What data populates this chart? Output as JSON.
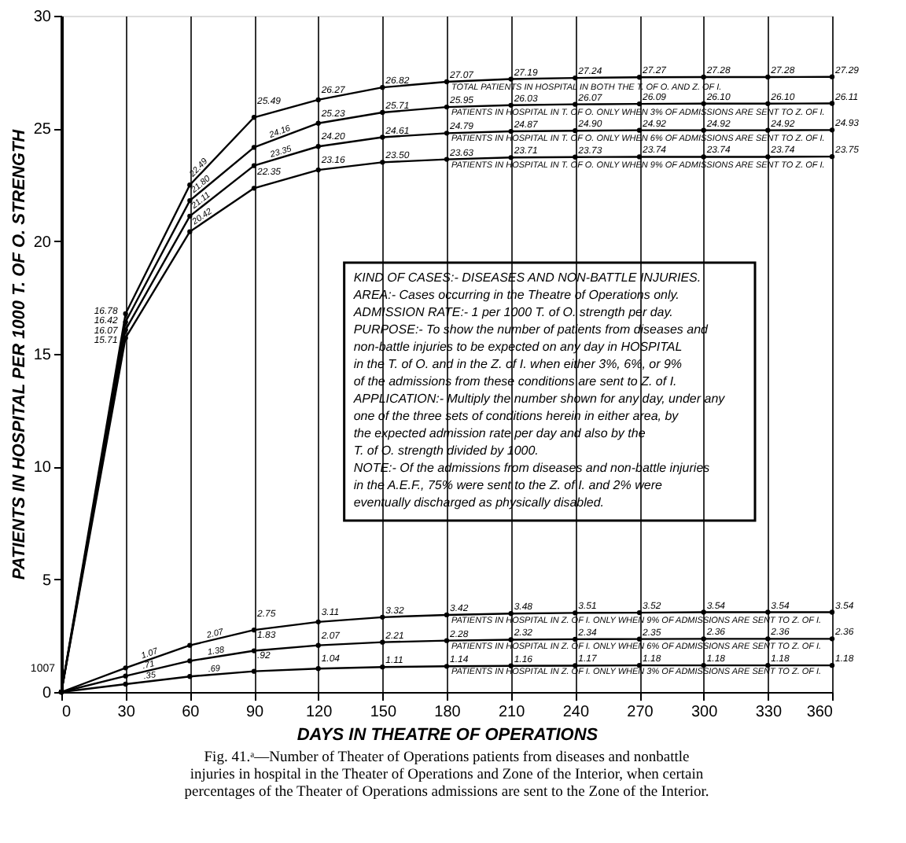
{
  "chart_data": {
    "type": "line",
    "xlabel": "DAYS IN THEATRE OF OPERATIONS",
    "ylabel": "PATIENTS IN HOSPITAL PER 1000 T. OF O. STRENGTH",
    "x": [
      0,
      30,
      60,
      90,
      120,
      150,
      180,
      210,
      240,
      270,
      300,
      330,
      360
    ],
    "xlim": [
      0,
      360
    ],
    "xticks": [
      0,
      30,
      60,
      90,
      120,
      150,
      180,
      210,
      240,
      270,
      300,
      330,
      360
    ],
    "ylim": [
      0,
      30
    ],
    "yticks": [
      0,
      5,
      10,
      15,
      20,
      25,
      30
    ],
    "grid": "x",
    "legend": false,
    "marker": "circle",
    "line_style": "solid",
    "series": [
      {
        "name": "TOTAL PATIENTS IN HOSPITAL IN BOTH THE T. OF O. AND Z. OF I.",
        "color": "#000000",
        "values": [
          0,
          16.78,
          22.49,
          25.49,
          26.27,
          26.82,
          27.07,
          27.19,
          27.24,
          27.27,
          27.28,
          27.28,
          27.29
        ],
        "value_labels": [
          null,
          "16.78",
          "22.49",
          "25.49",
          "26.27",
          "26.82",
          "27.07",
          "27.19",
          "27.24",
          "27.27",
          "27.28",
          "27.28",
          "27.29"
        ]
      },
      {
        "name": "PATIENTS IN HOSPITAL IN T. OF O. ONLY WHEN 3% OF ADMISSIONS ARE SENT TO Z. OF I.",
        "color": "#000000",
        "values": [
          0,
          16.42,
          21.8,
          24.16,
          25.23,
          25.71,
          25.95,
          26.03,
          26.07,
          26.09,
          26.1,
          26.1,
          26.11
        ],
        "value_labels": [
          null,
          "16.42",
          "21.80",
          "24.16",
          "25.23",
          "25.71",
          "25.95",
          "26.03",
          "26.07",
          "26.09",
          "26.10",
          "26.10",
          "26.11"
        ]
      },
      {
        "name": "PATIENTS IN HOSPITAL IN T. OF O. ONLY WHEN 6% OF ADMISSIONS ARE SENT TO Z. OF I.",
        "color": "#000000",
        "values": [
          0,
          16.07,
          21.11,
          23.35,
          24.2,
          24.61,
          24.79,
          24.87,
          24.9,
          24.92,
          24.92,
          24.92,
          24.93
        ],
        "value_labels": [
          null,
          "16.07",
          "21.11",
          "23.35",
          "24.20",
          "24.61",
          "24.79",
          "24.87",
          "24.90",
          "24.92",
          "24.92",
          "24.92",
          "24.93"
        ]
      },
      {
        "name": "PATIENTS IN HOSPITAL IN T. OF O. ONLY WHEN 9% OF ADMISSIONS ARE SENT TO Z. OF I.",
        "color": "#000000",
        "values": [
          0,
          15.71,
          20.42,
          22.35,
          23.16,
          23.5,
          23.63,
          23.71,
          23.73,
          23.74,
          23.74,
          23.74,
          23.75
        ],
        "value_labels": [
          null,
          "15.71",
          "20.42",
          "22.35",
          "23.16",
          "23.50",
          "23.63",
          "23.71",
          "23.73",
          "23.74",
          "23.74",
          "23.74",
          "23.75"
        ]
      },
      {
        "name": "PATIENTS IN HOSPITAL IN Z. OF I. ONLY WHEN 9% OF ADMISSIONS ARE SENT TO Z. OF I.",
        "color": "#000000",
        "values": [
          0,
          1.07,
          2.07,
          2.75,
          3.11,
          3.32,
          3.42,
          3.48,
          3.51,
          3.52,
          3.54,
          3.54,
          3.54
        ],
        "value_labels": [
          null,
          "1.07",
          "2.07",
          "2.75",
          "3.11",
          "3.32",
          "3.42",
          "3.48",
          "3.51",
          "3.52",
          "3.54",
          "3.54",
          "3.54"
        ]
      },
      {
        "name": "PATIENTS IN HOSPITAL IN Z. OF I. ONLY WHEN 6% OF ADMISSIONS ARE SENT TO Z. OF I.",
        "color": "#000000",
        "values": [
          0,
          0.71,
          1.38,
          1.83,
          2.07,
          2.21,
          2.28,
          2.32,
          2.34,
          2.35,
          2.36,
          2.36,
          2.36
        ],
        "value_labels": [
          null,
          ".71",
          "1.38",
          "1.83",
          "2.07",
          "2.21",
          "2.28",
          "2.32",
          "2.34",
          "2.35",
          "2.36",
          "2.36",
          "2.36"
        ]
      },
      {
        "name": "PATIENTS IN HOSPITAL IN Z. OF I. ONLY WHEN 3% OF ADMISSIONS ARE SENT TO Z. OF I.",
        "color": "#000000",
        "values": [
          0,
          0.35,
          0.69,
          0.92,
          1.04,
          1.11,
          1.14,
          1.16,
          1.17,
          1.18,
          1.18,
          1.18,
          1.18
        ],
        "value_labels": [
          null,
          ".35",
          ".69",
          ".92",
          "1.04",
          "1.11",
          "1.14",
          "1.16",
          "1.17",
          "1.18",
          "1.18",
          "1.18",
          "1.18"
        ]
      }
    ],
    "annotations": [
      "KIND OF CASES:- DISEASES AND NON-BATTLE INJURIES.\nAREA:- Cases occurring in the Theatre of Operations only.\nADMISSION RATE:- 1 per 1000 T. of O. strength per day.\nPURPOSE:- To show the number of patients from diseases and\n   non-battle injuries to be expected on any day in HOSPITAL\n   in the T. of O. and in the Z. of I. when either 3%, 6%, or 9%\n   of the admissions from these conditions are sent to Z. of I.\nAPPLICATION:- Multiply the number shown for any day, under any\n   one of the three sets of conditions herein in either area, by\n   the expected admission rate per day and also by the\n   T. of O. strength divided by 1000.\nNOTE:- Of the admissions from diseases and non-battle injuries\n   in the A.E.F., 75% were sent to the Z. of I. and 2% were\n   eventually discharged as physically disabled.",
      "1007",
      "Fig. 41.ᵃ—Number of Theater of Operations patients from diseases and nonbattle\ninjuries in hospital in the Theater of Operations and Zone of the Interior, when certain\npercentages of the Theater of Operations admissions are sent to the Zone of the Interior."
    ]
  }
}
